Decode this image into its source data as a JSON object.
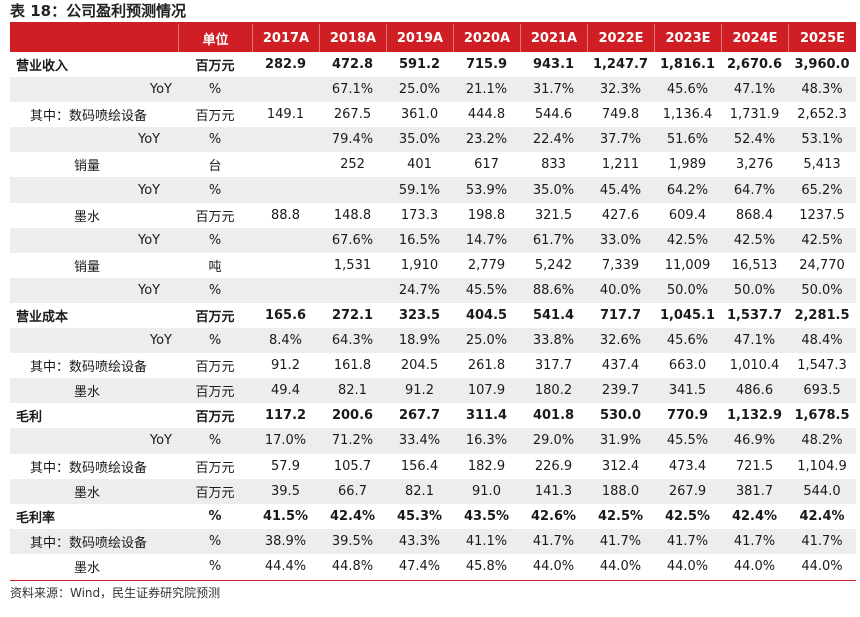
{
  "title": "表 18：公司盈利预测情况",
  "source": "资料来源：Wind，民生证券研究院预测",
  "header": {
    "unit": "单位",
    "years": [
      "2017A",
      "2018A",
      "2019A",
      "2020A",
      "2021A",
      "2022E",
      "2023E",
      "2024E",
      "2025E"
    ]
  },
  "rows": [
    {
      "label": "营业收入",
      "unit": "百万元",
      "level": "lv0",
      "bold": true,
      "values": [
        "282.9",
        "472.8",
        "591.2",
        "715.9",
        "943.1",
        "1,247.7",
        "1,816.1",
        "2,670.6",
        "3,960.0"
      ]
    },
    {
      "label": "YoY",
      "unit": "%",
      "level": "lvYoY",
      "bold": false,
      "values": [
        "",
        "67.1%",
        "25.0%",
        "21.1%",
        "31.7%",
        "32.3%",
        "45.6%",
        "47.1%",
        "48.3%"
      ]
    },
    {
      "label": "其中：数码喷绘设备",
      "unit": "百万元",
      "level": "lv1",
      "bold": false,
      "values": [
        "149.1",
        "267.5",
        "361.0",
        "444.8",
        "544.6",
        "749.8",
        "1,136.4",
        "1,731.9",
        "2,652.3"
      ]
    },
    {
      "label": "YoY",
      "unit": "%",
      "level": "lv3",
      "bold": false,
      "values": [
        "",
        "79.4%",
        "35.0%",
        "23.2%",
        "22.4%",
        "37.7%",
        "51.6%",
        "52.4%",
        "53.1%"
      ]
    },
    {
      "label": "销量",
      "unit": "台",
      "level": "lv2",
      "bold": false,
      "values": [
        "",
        "252",
        "401",
        "617",
        "833",
        "1,211",
        "1,989",
        "3,276",
        "5,413"
      ]
    },
    {
      "label": "YoY",
      "unit": "%",
      "level": "lv3",
      "bold": false,
      "values": [
        "",
        "",
        "59.1%",
        "53.9%",
        "35.0%",
        "45.4%",
        "64.2%",
        "64.7%",
        "65.2%"
      ]
    },
    {
      "label": "墨水",
      "unit": "百万元",
      "level": "lv2",
      "bold": false,
      "values": [
        "88.8",
        "148.8",
        "173.3",
        "198.8",
        "321.5",
        "427.6",
        "609.4",
        "868.4",
        "1237.5"
      ]
    },
    {
      "label": "YoY",
      "unit": "%",
      "level": "lv3",
      "bold": false,
      "values": [
        "",
        "67.6%",
        "16.5%",
        "14.7%",
        "61.7%",
        "33.0%",
        "42.5%",
        "42.5%",
        "42.5%"
      ]
    },
    {
      "label": "销量",
      "unit": "吨",
      "level": "lv2",
      "bold": false,
      "values": [
        "",
        "1,531",
        "1,910",
        "2,779",
        "5,242",
        "7,339",
        "11,009",
        "16,513",
        "24,770"
      ]
    },
    {
      "label": "YoY",
      "unit": "%",
      "level": "lv3",
      "bold": false,
      "values": [
        "",
        "",
        "24.7%",
        "45.5%",
        "88.6%",
        "40.0%",
        "50.0%",
        "50.0%",
        "50.0%"
      ]
    },
    {
      "label": "营业成本",
      "unit": "百万元",
      "level": "lv0",
      "bold": true,
      "values": [
        "165.6",
        "272.1",
        "323.5",
        "404.5",
        "541.4",
        "717.7",
        "1,045.1",
        "1,537.7",
        "2,281.5"
      ]
    },
    {
      "label": "YoY",
      "unit": "%",
      "level": "lvYoY",
      "bold": false,
      "values": [
        "8.4%",
        "64.3%",
        "18.9%",
        "25.0%",
        "33.8%",
        "32.6%",
        "45.6%",
        "47.1%",
        "48.4%"
      ]
    },
    {
      "label": "其中：数码喷绘设备",
      "unit": "百万元",
      "level": "lv1",
      "bold": false,
      "values": [
        "91.2",
        "161.8",
        "204.5",
        "261.8",
        "317.7",
        "437.4",
        "663.0",
        "1,010.4",
        "1,547.3"
      ]
    },
    {
      "label": "墨水",
      "unit": "百万元",
      "level": "lv2",
      "bold": false,
      "values": [
        "49.4",
        "82.1",
        "91.2",
        "107.9",
        "180.2",
        "239.7",
        "341.5",
        "486.6",
        "693.5"
      ]
    },
    {
      "label": "毛利",
      "unit": "百万元",
      "level": "lv0",
      "bold": true,
      "values": [
        "117.2",
        "200.6",
        "267.7",
        "311.4",
        "401.8",
        "530.0",
        "770.9",
        "1,132.9",
        "1,678.5"
      ]
    },
    {
      "label": "YoY",
      "unit": "%",
      "level": "lvYoY",
      "bold": false,
      "values": [
        "17.0%",
        "71.2%",
        "33.4%",
        "16.3%",
        "29.0%",
        "31.9%",
        "45.5%",
        "46.9%",
        "48.2%"
      ]
    },
    {
      "label": "其中：数码喷绘设备",
      "unit": "百万元",
      "level": "lv1",
      "bold": false,
      "values": [
        "57.9",
        "105.7",
        "156.4",
        "182.9",
        "226.9",
        "312.4",
        "473.4",
        "721.5",
        "1,104.9"
      ]
    },
    {
      "label": "墨水",
      "unit": "百万元",
      "level": "lv2",
      "bold": false,
      "values": [
        "39.5",
        "66.7",
        "82.1",
        "91.0",
        "141.3",
        "188.0",
        "267.9",
        "381.7",
        "544.0"
      ]
    },
    {
      "label": "毛利率",
      "unit": "%",
      "level": "lv0",
      "bold": true,
      "values": [
        "41.5%",
        "42.4%",
        "45.3%",
        "43.5%",
        "42.6%",
        "42.5%",
        "42.5%",
        "42.4%",
        "42.4%"
      ]
    },
    {
      "label": "其中：数码喷绘设备",
      "unit": "%",
      "level": "lv1",
      "bold": false,
      "values": [
        "38.9%",
        "39.5%",
        "43.3%",
        "41.1%",
        "41.7%",
        "41.7%",
        "41.7%",
        "41.7%",
        "41.7%"
      ]
    },
    {
      "label": "墨水",
      "unit": "%",
      "level": "lv2",
      "bold": false,
      "values": [
        "44.4%",
        "44.8%",
        "47.4%",
        "45.8%",
        "44.0%",
        "44.0%",
        "44.0%",
        "44.0%",
        "44.0%"
      ]
    }
  ]
}
